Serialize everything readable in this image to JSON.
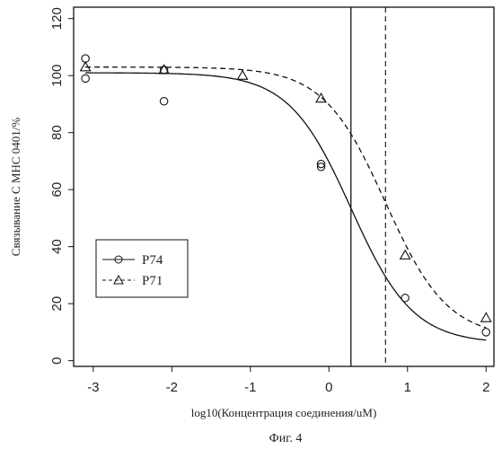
{
  "chart_data": {
    "type": "scatter",
    "xlabel": "log10(Концентрация соединения/uM)",
    "ylabel": "Связывание С МНС 0401/%",
    "caption": "Фиг. 4",
    "xlim": [
      -3.25,
      2.1
    ],
    "ylim": [
      -2,
      124
    ],
    "x_ticks": [
      -3,
      -2,
      -1,
      0,
      1,
      2
    ],
    "y_ticks": [
      0,
      20,
      40,
      60,
      80,
      100,
      120
    ],
    "grid": false,
    "legend_placement": "lower-left",
    "series": [
      {
        "name": "P74",
        "marker": "circle",
        "line": "solid",
        "points": [
          {
            "x": -3.1,
            "y": 106
          },
          {
            "x": -3.1,
            "y": 99
          },
          {
            "x": -2.1,
            "y": 102
          },
          {
            "x": -2.1,
            "y": 91
          },
          {
            "x": -0.1,
            "y": 69
          },
          {
            "x": -0.1,
            "y": 68
          },
          {
            "x": 0.97,
            "y": 22
          },
          {
            "x": 2.0,
            "y": 10
          }
        ],
        "fit": {
          "top": 101,
          "bottom": 6,
          "ic50_log": 0.28,
          "hill": 1.1
        },
        "ic50_line_x": 0.28
      },
      {
        "name": "P71",
        "marker": "triangle",
        "line": "dashed",
        "points": [
          {
            "x": -3.1,
            "y": 103
          },
          {
            "x": -2.1,
            "y": 102
          },
          {
            "x": -1.1,
            "y": 100
          },
          {
            "x": -0.1,
            "y": 92
          },
          {
            "x": 0.97,
            "y": 37
          },
          {
            "x": 2.0,
            "y": 15
          }
        ],
        "fit": {
          "top": 103,
          "bottom": 8,
          "ic50_log": 0.72,
          "hill": 1.1
        },
        "ic50_line_x": 0.72
      }
    ]
  }
}
